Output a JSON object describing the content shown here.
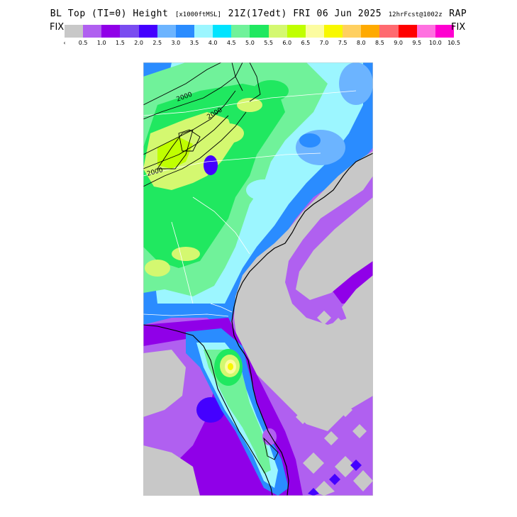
{
  "title": {
    "main": "BL Top (TI=0) Height",
    "units": "[x1000ftMSL]",
    "valid": "21Z(17edt) FRI 06 Jun 2025",
    "forecast": "12hrFcst@1002z",
    "model": "RAP"
  },
  "legend": {
    "left_label": "FIX",
    "right_label": "FIX",
    "less_mark": "‹",
    "more_mark": "›",
    "ticks": [
      "0.5",
      "1.0",
      "1.5",
      "2.0",
      "2.5",
      "3.0",
      "3.5",
      "4.0",
      "4.5",
      "5.0",
      "5.5",
      "6.0",
      "6.5",
      "7.0",
      "7.5",
      "8.0",
      "8.5",
      "9.0",
      "9.5",
      "10.0",
      "10.5"
    ],
    "colors": [
      "#c8c8c8",
      "#b060f0",
      "#9000e8",
      "#7a4cf0",
      "#4400ff",
      "#6cb4ff",
      "#2a8cff",
      "#9cf6ff",
      "#00e4ff",
      "#70f29a",
      "#20e860",
      "#d4f870",
      "#c0ff00",
      "#fcfca0",
      "#f8f800",
      "#ffd060",
      "#ffaa00",
      "#ff6a70",
      "#ff0000",
      "#ff70e0",
      "#ff00d0"
    ]
  },
  "map": {
    "contour_labels": [
      "2000",
      "2000",
      "2000"
    ],
    "land_color": "#c8c8c8"
  }
}
